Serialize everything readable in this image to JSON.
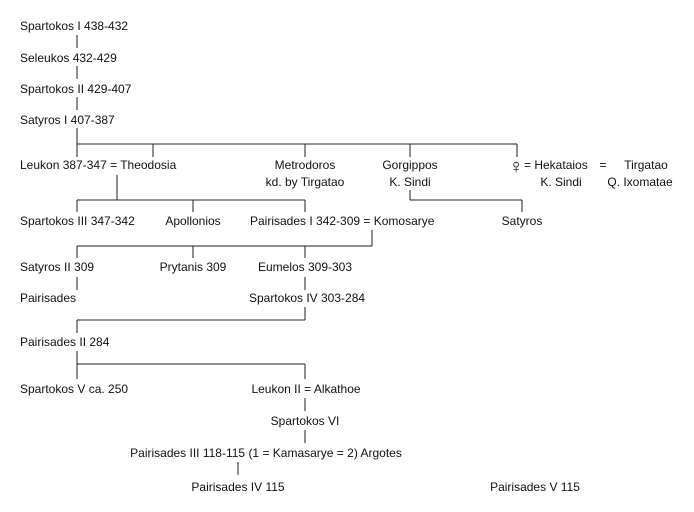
{
  "tree": {
    "gen1": "Spartokos I 438-432",
    "gen2": "Seleukos 432-429",
    "gen3": "Spartokos II 429-407",
    "gen4": "Satyros I 407-387",
    "leukon": "Leukon 387-347 = Theodosia",
    "metrodoros": "Metrodoros",
    "metrodoros_note": "kd. by Tirgatao",
    "gorgippos": "Gorgippos",
    "gorgippos_note": "K. Sindi",
    "female_symbol": "♀",
    "hekataios": "= Hekataios",
    "hekataios_note": "K. Sindi",
    "eq": "=",
    "tirgatao": "Tirgatao",
    "tirgatao_note": "Q. Ixomatae",
    "spartokos3": "Spartokos III 347-342",
    "apollonios": "Apollonios",
    "pairisades1": "Pairisades I 342-309 = Komosarye",
    "satyros": "Satyros",
    "satyros2": "Satyros II 309",
    "prytanis": "Prytanis 309",
    "eumelos": "Eumelos 309-303",
    "pairisades": "Pairisades",
    "spartokos4": "Spartokos IV 303-284",
    "pairisades2": "Pairisades II 284",
    "spartokos5": "Spartokos V ca. 250",
    "leukon2": "Leukon II = Alkathoe",
    "spartokos6": "Spartokos VI",
    "pairisades3": "Pairisades III 118-115 (1 = Kamasarye = 2) Argotes",
    "pairisades4": "Pairisades IV 115",
    "pairisades5": "Pairisades V 115"
  }
}
